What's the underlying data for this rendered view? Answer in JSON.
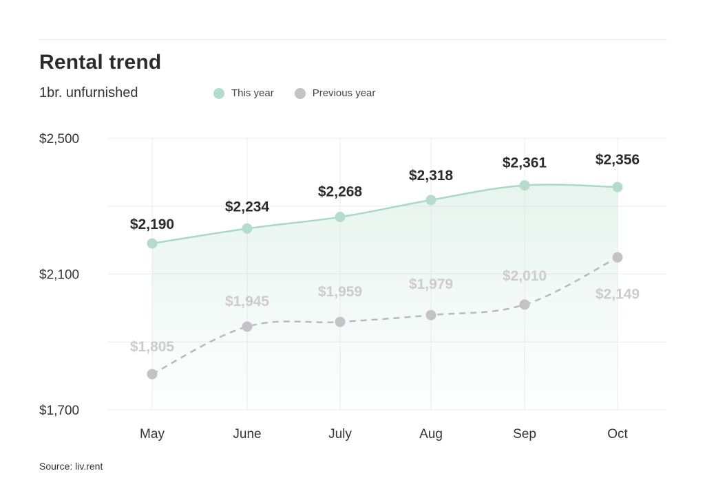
{
  "title": "Rental trend",
  "subtitle": "1br. unfurnished",
  "source": "Source: liv.rent",
  "legend": {
    "this_year": "This year",
    "previous_year": "Previous year"
  },
  "colors": {
    "this_year": "#a9d8c4",
    "this_year_point": "#b3dccb",
    "previous_year": "#b9b9bb",
    "previous_year_point": "#c3c2c6",
    "grid": "#ececec"
  },
  "chart_data": {
    "type": "line",
    "categories": [
      "May",
      "June",
      "July",
      "Aug",
      "Sep",
      "Oct"
    ],
    "series": [
      {
        "name": "This year",
        "values": [
          2190,
          2234,
          2268,
          2318,
          2361,
          2356
        ],
        "labels": [
          "$2,190",
          "$2,234",
          "$2,268",
          "$2,318",
          "$2,361",
          "$2,356"
        ],
        "style": "solid-area"
      },
      {
        "name": "Previous year",
        "values": [
          1805,
          1945,
          1959,
          1979,
          2010,
          2149
        ],
        "labels": [
          "$1,805",
          "$1,945",
          "$1,959",
          "$1,979",
          "$2,010",
          "$2,149"
        ],
        "style": "dashed"
      }
    ],
    "yticks": [
      2500,
      2100,
      1700
    ],
    "ytick_labels": [
      "$2,500",
      "$2,100",
      "$1,700"
    ],
    "ylim": [
      1700,
      2500
    ],
    "grid": true,
    "legend_position": "top"
  }
}
